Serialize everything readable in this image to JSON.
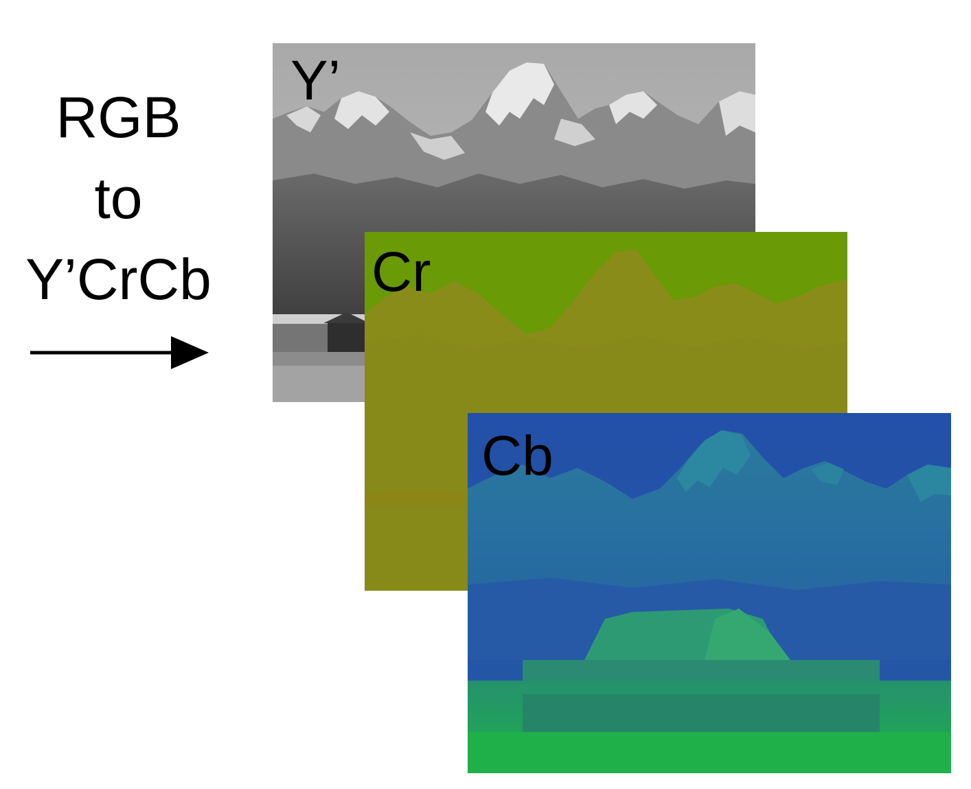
{
  "caption": {
    "line1": "RGB",
    "line2": "to",
    "line3": "Y’CrCb"
  },
  "arrow": {
    "icon": "right-arrow-icon",
    "color": "#000000"
  },
  "panels": {
    "luma": {
      "label": "Y’",
      "colors": {
        "sky": "#b1b1b1",
        "snow": "#efefef",
        "rock": "#5d5d5d",
        "ground": "#7a7a7a"
      }
    },
    "chroma_red": {
      "label": "Cr",
      "colors": {
        "sky": "#6b9a06",
        "mountains": "#8c8b1a",
        "ground": "#8a8718"
      }
    },
    "chroma_blue": {
      "label": "Cb",
      "colors": {
        "sky": "#2452a8",
        "mountains": "#2c7aa0",
        "barn": "#2f9270",
        "ground": "#22aa55"
      }
    }
  }
}
